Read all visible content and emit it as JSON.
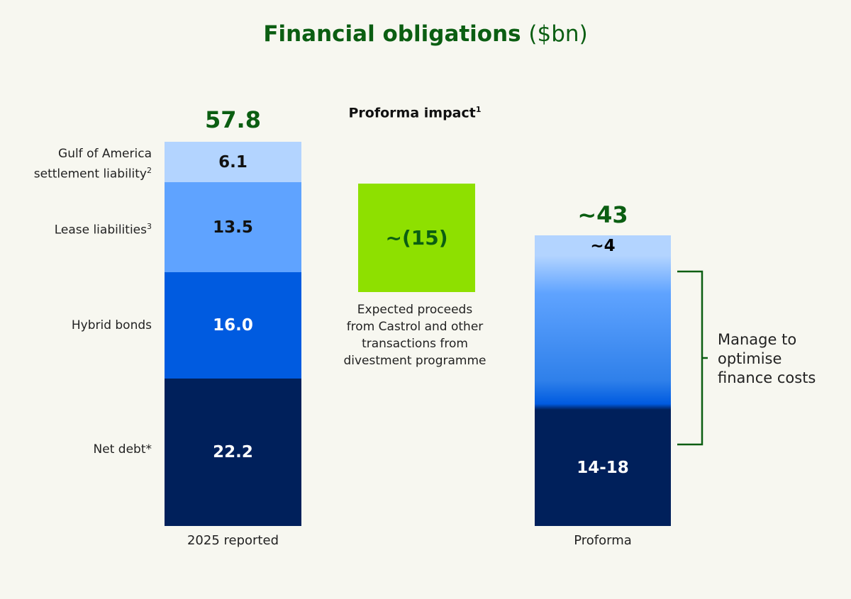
{
  "chart_data": {
    "type": "bar",
    "stacked": true,
    "title": "Financial obligations",
    "title_unit": "($bn)",
    "categories": [
      "2025 reported",
      "Proforma"
    ],
    "bars": [
      {
        "category": "2025 reported",
        "total_label": "57.8",
        "total": 57.8,
        "segments": [
          {
            "name": "Net debt*",
            "value": 22.2,
            "label": "22.2",
            "color": "#00205b",
            "text_color": "#ffffff"
          },
          {
            "name": "Hybrid bonds",
            "value": 16.0,
            "label": "16.0",
            "color": "#005be0",
            "text_color": "#ffffff"
          },
          {
            "name": "Lease liabilities",
            "sup": "3",
            "value": 13.5,
            "label": "13.5",
            "color": "#5fa3ff",
            "text_color": "#111111"
          },
          {
            "name": "Gulf of America settlement liability",
            "sup": "2",
            "value": 6.1,
            "label": "6.1",
            "color": "#b3d4ff",
            "text_color": "#111111"
          }
        ]
      },
      {
        "category": "Proforma",
        "total_label": "~43",
        "total": 43,
        "segments": [
          {
            "label": "14-18",
            "color": "#00205b",
            "text_color": "#ffffff"
          },
          {
            "label": "~4",
            "color": "#b3d4ff",
            "text_color": "#111111"
          }
        ]
      }
    ],
    "impact": {
      "heading": "Proforma impact",
      "heading_sup": "1",
      "value_label": "~(15)",
      "value": -15,
      "color": "#8ee000",
      "caption": [
        "Expected proceeds",
        "from Castrol and other",
        "transactions from",
        "divestment programme"
      ]
    },
    "annotation": {
      "text": [
        "Manage to",
        "optimise",
        "finance costs"
      ],
      "color": "#0b5e12"
    }
  }
}
